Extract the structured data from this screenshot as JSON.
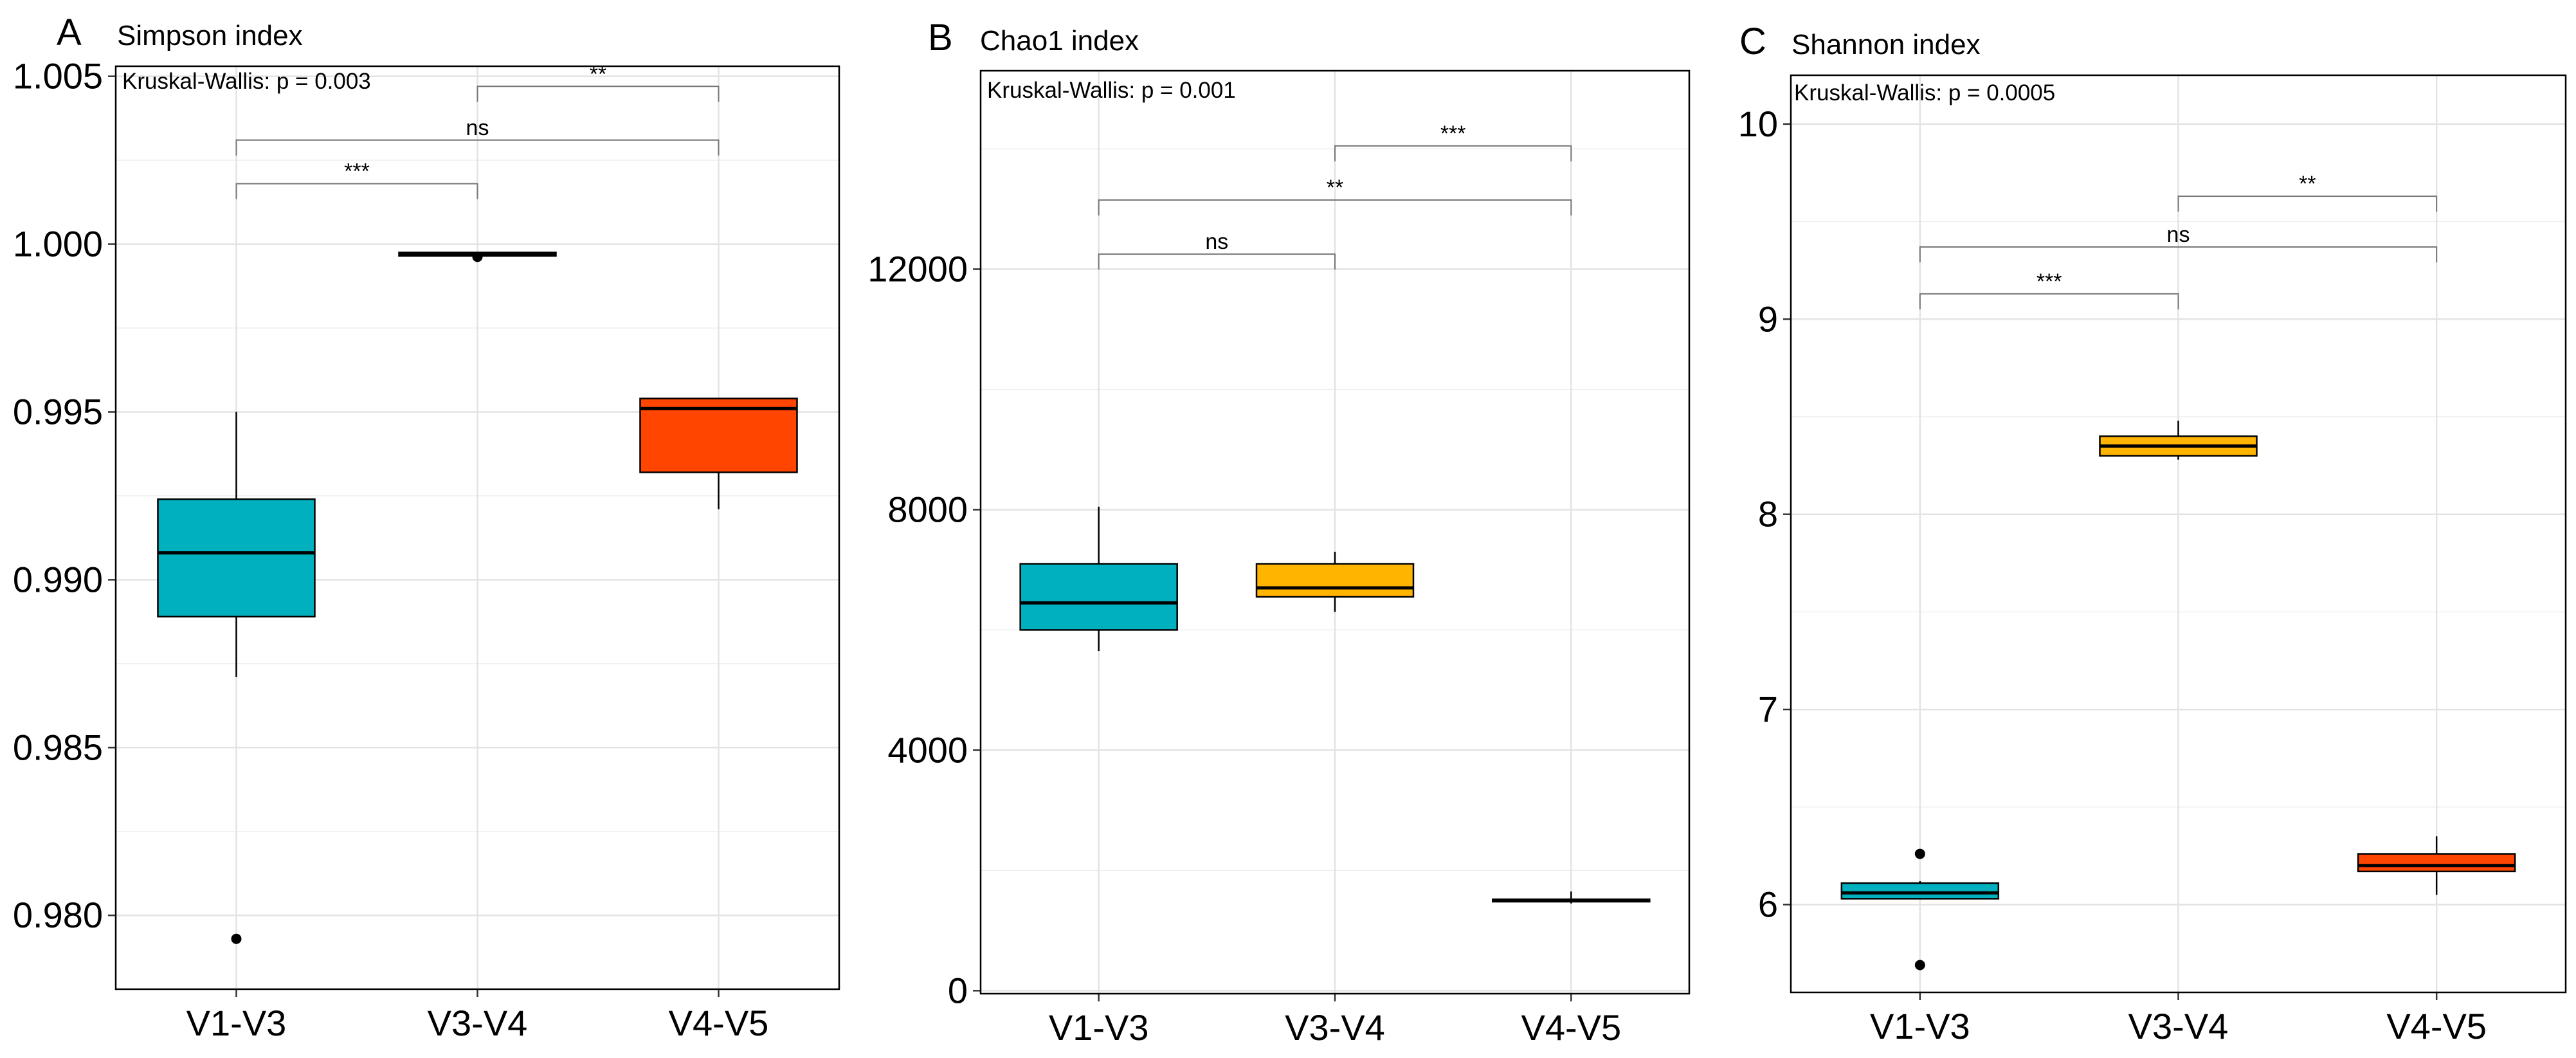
{
  "chart_data": [
    {
      "type": "box",
      "letter": "A",
      "title": "Simpson index",
      "annotation": "Kruskal-Wallis: p = 0.003",
      "categories": [
        "V1-V3",
        "V3-V4",
        "V4-V5"
      ],
      "ylim": [
        0.9778,
        1.0053
      ],
      "yticks": [
        0.98,
        0.985,
        0.99,
        0.995,
        1.0,
        1.005
      ],
      "ytick_labels": [
        "0.980",
        "0.985",
        "0.990",
        "0.995",
        "1.000",
        "1.005"
      ],
      "boxes": [
        {
          "category": "V1-V3",
          "color": "#00B0BE",
          "whisker_low": 0.9871,
          "q1": 0.9889,
          "median": 0.9908,
          "q3": 0.9924,
          "whisker_high": 0.995,
          "outliers": [
            0.9793
          ]
        },
        {
          "category": "V3-V4",
          "color": "#000000",
          "whisker_low": 0.99965,
          "q1": 0.99965,
          "median": 0.9997,
          "q3": 0.99975,
          "whisker_high": 0.99975,
          "outliers": [
            0.99962
          ]
        },
        {
          "category": "V4-V5",
          "color": "#FF4500",
          "whisker_low": 0.9921,
          "q1": 0.9932,
          "median": 0.9951,
          "q3": 0.9954,
          "whisker_high": 0.9954,
          "outliers": []
        }
      ],
      "brackets": [
        {
          "from": "V3-V4",
          "to": "V4-V5",
          "y": 1.0047,
          "label": "**"
        },
        {
          "from": "V1-V3",
          "to": "V4-V5",
          "y": 1.0031,
          "label": "ns"
        },
        {
          "from": "V1-V3",
          "to": "V3-V4",
          "y": 1.0018,
          "label": "***"
        }
      ]
    },
    {
      "type": "box",
      "letter": "B",
      "title": "Chao1 index",
      "annotation": "Kruskal-Wallis: p = 0.001",
      "categories": [
        "V1-V3",
        "V3-V4",
        "V4-V5"
      ],
      "ylim": [
        -50,
        15300
      ],
      "yticks": [
        0,
        4000,
        8000,
        12000
      ],
      "ytick_labels": [
        "0",
        "4000",
        "8000",
        "12000"
      ],
      "boxes": [
        {
          "category": "V1-V3",
          "color": "#00B0BE",
          "whisker_low": 5650,
          "q1": 6000,
          "median": 6450,
          "q3": 7100,
          "whisker_high": 8050,
          "outliers": []
        },
        {
          "category": "V3-V4",
          "color": "#FFB400",
          "whisker_low": 6300,
          "q1": 6550,
          "median": 6700,
          "q3": 7100,
          "whisker_high": 7300,
          "outliers": []
        },
        {
          "category": "V4-V5",
          "color": "#000000",
          "whisker_low": 1450,
          "q1": 1480,
          "median": 1500,
          "q3": 1520,
          "whisker_high": 1650,
          "outliers": []
        }
      ],
      "brackets": [
        {
          "from": "V3-V4",
          "to": "V4-V5",
          "y": 14050,
          "label": "***"
        },
        {
          "from": "V1-V3",
          "to": "V4-V5",
          "y": 13150,
          "label": "**"
        },
        {
          "from": "V1-V3",
          "to": "V3-V4",
          "y": 12250,
          "label": "ns"
        }
      ]
    },
    {
      "type": "box",
      "letter": "C",
      "title": "Shannon index",
      "annotation": "Kruskal-Wallis: p = 0.0005",
      "categories": [
        "V1-V3",
        "V3-V4",
        "V4-V5"
      ],
      "ylim": [
        5.55,
        10.25
      ],
      "yticks": [
        6,
        7,
        8,
        9,
        10
      ],
      "ytick_labels": [
        "6",
        "7",
        "8",
        "9",
        "10"
      ],
      "boxes": [
        {
          "category": "V1-V3",
          "color": "#00B0BE",
          "whisker_low": 6.03,
          "q1": 6.03,
          "median": 6.06,
          "q3": 6.11,
          "whisker_high": 6.12,
          "outliers": [
            6.26,
            5.69
          ]
        },
        {
          "category": "V3-V4",
          "color": "#FFB400",
          "whisker_low": 8.28,
          "q1": 8.3,
          "median": 8.35,
          "q3": 8.4,
          "whisker_high": 8.48,
          "outliers": []
        },
        {
          "category": "V4-V5",
          "color": "#FF4500",
          "whisker_low": 6.05,
          "q1": 6.17,
          "median": 6.2,
          "q3": 6.26,
          "whisker_high": 6.35,
          "outliers": []
        }
      ],
      "brackets": [
        {
          "from": "V3-V4",
          "to": "V4-V5",
          "y": 9.63,
          "label": "**"
        },
        {
          "from": "V1-V3",
          "to": "V4-V5",
          "y": 9.37,
          "label": "ns"
        },
        {
          "from": "V1-V3",
          "to": "V3-V4",
          "y": 9.13,
          "label": "***"
        }
      ]
    }
  ]
}
